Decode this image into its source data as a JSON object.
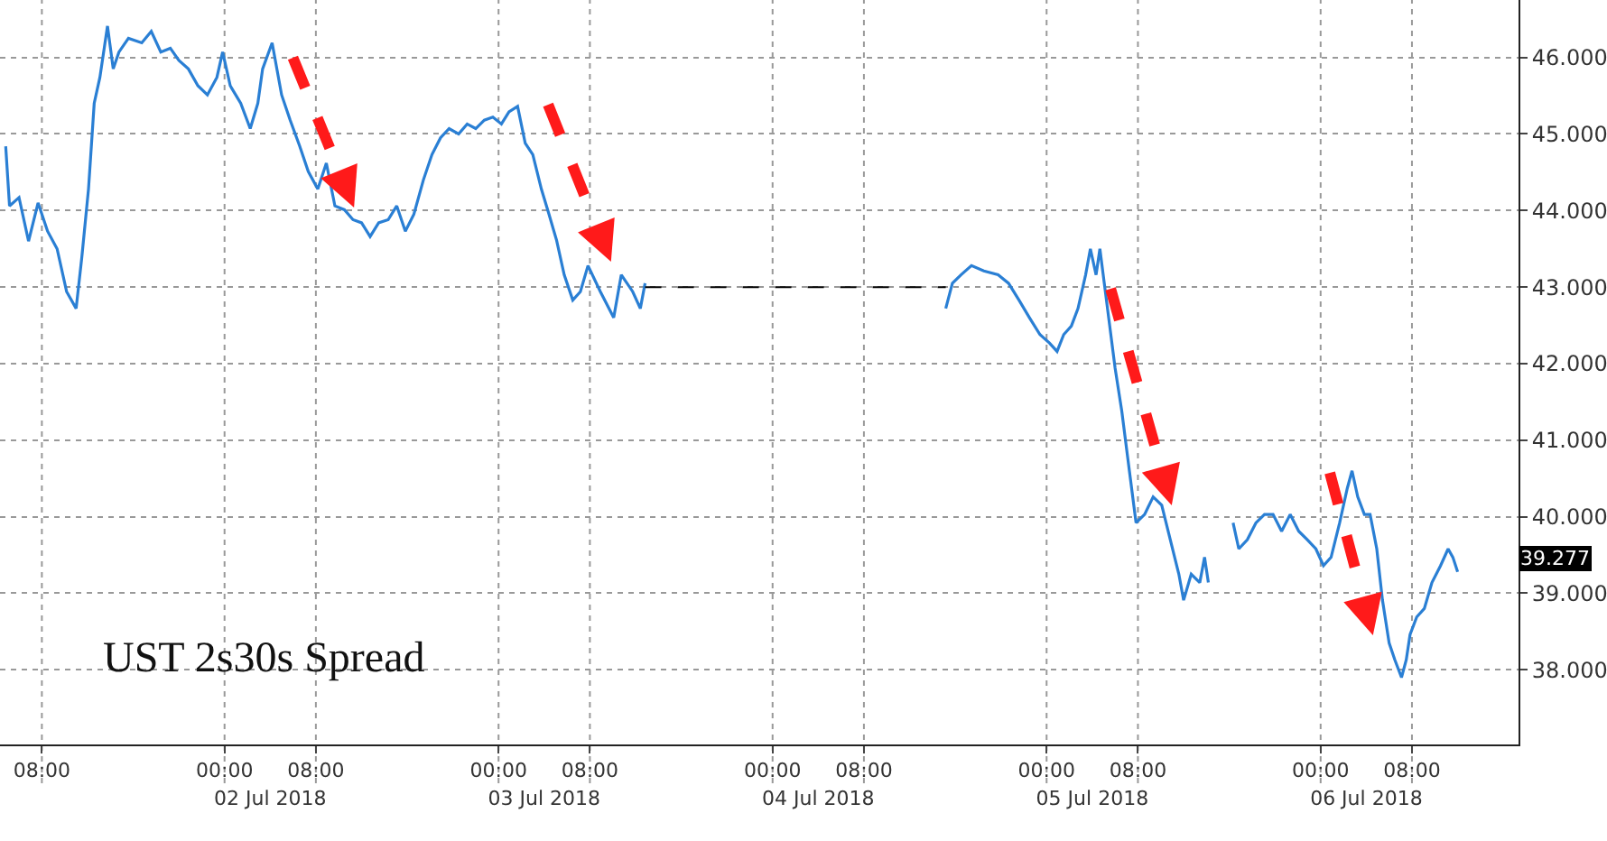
{
  "chart_data": {
    "type": "line",
    "title": "UST 2s30s Spread",
    "xlim": [
      "2018-07-01T04:20",
      "2018-07-06T17:20"
    ],
    "ylim": [
      37.03,
      46.75
    ],
    "xticks": [
      {
        "value": "2018-07-01T08:00",
        "label": "08:00"
      },
      {
        "value": "2018-07-02T00:00",
        "label": "00:00"
      },
      {
        "value": "2018-07-02T08:00",
        "label": "08:00"
      },
      {
        "value": "2018-07-03T00:00",
        "label": "00:00"
      },
      {
        "value": "2018-07-03T08:00",
        "label": "08:00"
      },
      {
        "value": "2018-07-04T00:00",
        "label": "00:00"
      },
      {
        "value": "2018-07-04T08:00",
        "label": "08:00"
      },
      {
        "value": "2018-07-05T00:00",
        "label": "00:00"
      },
      {
        "value": "2018-07-05T08:00",
        "label": "08:00"
      },
      {
        "value": "2018-07-06T00:00",
        "label": "00:00"
      },
      {
        "value": "2018-07-06T08:00",
        "label": "08:00"
      }
    ],
    "x2lim": [
      "2018-07-01T04:20",
      "2018-07-06T17:20"
    ],
    "x2ticks": [
      {
        "value": "2018-07-02T04:00",
        "label": "02 Jul 2018"
      },
      {
        "value": "2018-07-03T04:00",
        "label": "03 Jul 2018"
      },
      {
        "value": "2018-07-04T04:00",
        "label": "04 Jul 2018"
      },
      {
        "value": "2018-07-05T04:00",
        "label": "05 Jul 2018"
      },
      {
        "value": "2018-07-06T04:00",
        "label": "06 Jul 2018"
      }
    ],
    "yticks": [
      {
        "value": 38,
        "label": "38.000"
      },
      {
        "value": 39,
        "label": "39.000"
      },
      {
        "value": 40,
        "label": "40.000"
      },
      {
        "value": 41,
        "label": "41.000"
      },
      {
        "value": 42,
        "label": "42.000"
      },
      {
        "value": 43,
        "label": "43.000"
      },
      {
        "value": 44,
        "label": "44.000"
      },
      {
        "value": 45,
        "label": "45.000"
      },
      {
        "value": 46,
        "label": "46.000"
      }
    ],
    "grid": true,
    "annotations": [
      "39.277"
    ],
    "series": [
      {
        "color": "#2a7fd4",
        "line_style": "solid",
        "x": [
          "2018-07-01T04:50",
          "2018-07-01T05:10",
          "2018-07-01T06:00",
          "2018-07-01T06:50",
          "2018-07-01T07:40",
          "2018-07-01T08:30",
          "2018-07-01T09:20",
          "2018-07-01T10:10",
          "2018-07-01T11:00",
          "2018-07-01T11:30",
          "2018-07-01T12:05",
          "2018-07-01T12:35",
          "2018-07-01T13:05",
          "2018-07-01T13:45",
          "2018-07-01T14:15",
          "2018-07-01T14:45",
          "2018-07-01T15:35",
          "2018-07-01T16:45",
          "2018-07-01T17:35",
          "2018-07-01T18:25",
          "2018-07-01T19:15",
          "2018-07-01T20:00",
          "2018-07-01T20:50",
          "2018-07-01T21:40",
          "2018-07-01T22:30",
          "2018-07-01T23:20",
          "2018-07-01T23:50",
          "2018-07-02T00:30",
          "2018-07-02T01:25",
          "2018-07-02T02:15",
          "2018-07-02T02:55",
          "2018-07-02T03:20",
          "2018-07-02T04:10",
          "2018-07-02T05:00",
          "2018-07-02T05:45",
          "2018-07-02T06:35",
          "2018-07-02T07:20",
          "2018-07-02T08:10",
          "2018-07-02T08:55",
          "2018-07-02T09:40",
          "2018-07-02T10:30",
          "2018-07-02T11:15",
          "2018-07-02T12:00",
          "2018-07-02T12:45",
          "2018-07-02T13:30",
          "2018-07-02T14:20",
          "2018-07-02T15:05",
          "2018-07-02T15:50",
          "2018-07-02T16:35",
          "2018-07-02T17:25",
          "2018-07-02T18:10",
          "2018-07-02T18:55",
          "2018-07-02T19:40",
          "2018-07-02T20:30",
          "2018-07-02T21:15",
          "2018-07-02T22:00",
          "2018-07-02T22:45",
          "2018-07-02T23:30",
          "2018-07-03T00:15",
          "2018-07-03T00:55",
          "2018-07-03T01:40",
          "2018-07-03T02:20",
          "2018-07-03T03:00",
          "2018-07-03T03:45",
          "2018-07-03T04:25",
          "2018-07-03T05:05",
          "2018-07-03T05:45",
          "2018-07-03T06:30",
          "2018-07-03T07:10",
          "2018-07-03T07:50",
          "2018-07-03T08:55",
          "2018-07-03T10:05",
          "2018-07-03T10:45",
          "2018-07-03T11:45",
          "2018-07-03T12:25",
          "2018-07-03T12:50",
          "2018-07-04T00:00",
          "2018-07-04T15:10",
          "2018-07-04T15:45",
          "2018-07-04T16:30",
          "2018-07-04T17:25",
          "2018-07-04T18:30",
          "2018-07-04T19:45",
          "2018-07-04T20:40",
          "2018-07-04T21:35",
          "2018-07-04T22:30",
          "2018-07-04T23:25",
          "2018-07-05T00:15",
          "2018-07-05T00:55",
          "2018-07-05T01:30",
          "2018-07-05T02:10",
          "2018-07-05T02:45",
          "2018-07-05T03:25",
          "2018-07-05T03:50",
          "2018-07-05T04:20",
          "2018-07-05T04:40",
          "2018-07-05T05:20",
          "2018-07-05T06:00",
          "2018-07-05T06:35",
          "2018-07-05T07:15",
          "2018-07-05T07:50",
          "2018-07-05T08:35",
          "2018-07-05T09:20",
          "2018-07-05T10:05",
          "2018-07-05T10:50",
          "2018-07-05T11:35",
          "2018-07-05T12:00",
          "2018-07-05T12:40",
          "2018-07-05T13:25",
          "2018-07-05T13:50",
          "2018-07-05T14:10",
          "2018-07-05T15:00",
          "2018-07-05T16:20",
          "2018-07-05T16:50",
          "2018-07-05T17:35",
          "2018-07-05T18:20",
          "2018-07-05T19:05",
          "2018-07-05T19:50",
          "2018-07-05T20:35",
          "2018-07-05T21:20",
          "2018-07-05T22:05",
          "2018-07-05T22:50",
          "2018-07-05T23:35",
          "2018-07-06T00:15",
          "2018-07-06T00:55",
          "2018-07-06T01:40",
          "2018-07-06T02:20",
          "2018-07-06T02:45",
          "2018-07-06T03:15",
          "2018-07-06T03:50",
          "2018-07-06T04:20",
          "2018-07-06T04:55",
          "2018-07-06T05:25",
          "2018-07-06T06:00",
          "2018-07-06T06:30",
          "2018-07-06T07:05",
          "2018-07-06T07:30",
          "2018-07-06T07:50",
          "2018-07-06T08:25",
          "2018-07-06T09:05",
          "2018-07-06T09:45",
          "2018-07-06T10:30",
          "2018-07-06T11:10",
          "2018-07-06T11:35",
          "2018-07-06T12:00"
        ],
        "values": [
          44.84,
          44.06,
          44.17,
          43.6,
          44.1,
          43.73,
          43.5,
          42.94,
          42.72,
          43.39,
          44.28,
          45.4,
          45.74,
          46.41,
          45.85,
          46.07,
          46.25,
          46.19,
          46.34,
          46.07,
          46.12,
          45.96,
          45.85,
          45.63,
          45.51,
          45.74,
          46.07,
          45.63,
          45.4,
          45.07,
          45.4,
          45.85,
          46.19,
          45.51,
          45.18,
          44.84,
          44.51,
          44.28,
          44.62,
          44.06,
          44.01,
          43.88,
          43.84,
          43.66,
          43.84,
          43.88,
          44.06,
          43.73,
          43.95,
          44.4,
          44.73,
          44.95,
          45.07,
          45.0,
          45.13,
          45.07,
          45.18,
          45.22,
          45.13,
          45.29,
          45.36,
          44.88,
          44.73,
          44.28,
          43.95,
          43.61,
          43.16,
          42.83,
          42.94,
          43.28,
          42.94,
          42.6,
          43.16,
          42.94,
          42.72,
          43.05,
          null,
          42.72,
          43.05,
          43.16,
          43.28,
          43.21,
          43.16,
          43.05,
          42.83,
          42.6,
          42.38,
          42.27,
          42.16,
          42.38,
          42.49,
          42.72,
          43.16,
          43.5,
          43.16,
          43.5,
          42.72,
          41.94,
          41.38,
          40.6,
          39.92,
          40.03,
          40.26,
          40.15,
          39.7,
          39.25,
          38.91,
          39.25,
          39.14,
          39.47,
          39.14,
          null,
          39.92,
          39.58,
          39.7,
          39.92,
          40.03,
          40.03,
          39.81,
          40.03,
          39.81,
          39.7,
          39.58,
          39.36,
          39.47,
          39.92,
          40.37,
          40.6,
          40.26,
          40.03,
          40.03,
          39.58,
          38.91,
          38.35,
          38.13,
          37.9,
          38.13,
          38.46,
          38.69,
          38.8,
          39.14,
          39.36,
          39.58,
          39.47,
          39.28
        ]
      },
      {
        "color": "#000000",
        "line_style": "dashed",
        "x": [
          "2018-07-03T12:50",
          "2018-07-04T15:10"
        ],
        "values": [
          43.0,
          43.0
        ]
      }
    ]
  }
}
